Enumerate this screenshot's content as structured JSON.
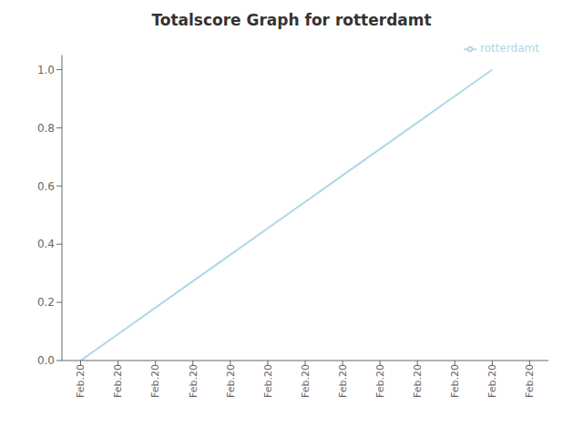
{
  "chart_data": {
    "type": "line",
    "title": "Totalscore Graph for rotterdamt",
    "x": [
      0,
      1,
      2,
      3,
      4,
      5,
      6,
      7,
      8,
      9,
      10,
      11
    ],
    "series": [
      {
        "name": "rotterdamt",
        "color": "#add8e6",
        "values": [
          0.0,
          0.0909,
          0.1818,
          0.2727,
          0.3636,
          0.4545,
          0.5455,
          0.6364,
          0.7273,
          0.8182,
          0.9091,
          1.0
        ]
      }
    ],
    "xlim": [
      -0.5,
      12.5
    ],
    "xticks": [
      {
        "value": 0,
        "label": "Feb.20"
      },
      {
        "value": 1,
        "label": "Feb.20"
      },
      {
        "value": 2,
        "label": "Feb.20"
      },
      {
        "value": 3,
        "label": "Feb.20"
      },
      {
        "value": 4,
        "label": "Feb.20"
      },
      {
        "value": 5,
        "label": "Feb.20"
      },
      {
        "value": 6,
        "label": "Feb.20"
      },
      {
        "value": 7,
        "label": "Feb.20"
      },
      {
        "value": 8,
        "label": "Feb.20"
      },
      {
        "value": 9,
        "label": "Feb.20"
      },
      {
        "value": 10,
        "label": "Feb.20"
      },
      {
        "value": 11,
        "label": "Feb.20"
      },
      {
        "value": 12,
        "label": "Feb.20"
      }
    ],
    "ylim": [
      0.0,
      1.05
    ],
    "yticks": [
      {
        "value": 0.0,
        "label": "0.0"
      },
      0.2,
      0.4,
      0.6,
      0.8,
      {
        "value": 1.0,
        "label": "1.0"
      }
    ],
    "grid": false,
    "legend": "upper right"
  }
}
